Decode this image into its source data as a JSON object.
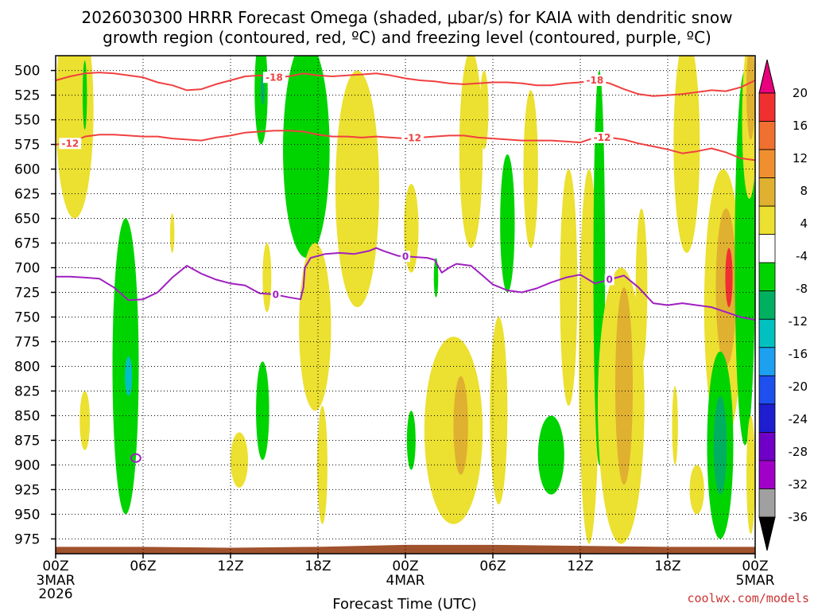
{
  "chart_data": {
    "type": "heatmap",
    "title_lines": [
      "2026030300 HRRR Forecast Omega (shaded, μbar/s) for KAIA with dendritic snow",
      "growth region (contoured, red, ºC) and freezing level (contoured, purple, ºC)"
    ],
    "xlabel": "Forecast Time (UTC)",
    "ylabel": "",
    "x_range_hours": [
      0,
      48
    ],
    "y_range_hpa": [
      990,
      485
    ],
    "y_ticks": [
      500,
      525,
      550,
      575,
      600,
      625,
      650,
      675,
      700,
      725,
      750,
      775,
      800,
      825,
      850,
      875,
      900,
      925,
      950,
      975
    ],
    "x_ticks": [
      {
        "hour": 0,
        "label": "00Z"
      },
      {
        "hour": 6,
        "label": "06Z"
      },
      {
        "hour": 12,
        "label": "12Z"
      },
      {
        "hour": 18,
        "label": "18Z"
      },
      {
        "hour": 24,
        "label": "00Z"
      },
      {
        "hour": 30,
        "label": "06Z"
      },
      {
        "hour": 36,
        "label": "12Z"
      },
      {
        "hour": 42,
        "label": "18Z"
      },
      {
        "hour": 48,
        "label": "00Z"
      }
    ],
    "date_labels": [
      {
        "hour": 0,
        "lines": [
          "3MAR",
          "2026"
        ]
      },
      {
        "hour": 24,
        "lines": [
          "4MAR"
        ]
      },
      {
        "hour": 48,
        "lines": [
          "5MAR"
        ]
      }
    ],
    "colorbar": {
      "labels": [
        "20",
        "16",
        "12",
        "8",
        "4",
        "-4",
        "-8",
        "-12",
        "-16",
        "-20",
        "-24",
        "-28",
        "-32",
        "-36"
      ],
      "bands": [
        "#e8007d",
        "#f03030",
        "#f07030",
        "#f08f30",
        "#e0b030",
        "#ece030",
        "#ffffff",
        "#00d400",
        "#00b060",
        "#00c0c0",
        "#1ea0f0",
        "#1e50f0",
        "#1e1ed0",
        "#7000c8",
        "#a000c8",
        "#a0a0a0"
      ],
      "end_colors": {
        "top": "#e8007d",
        "bottom": "#000000"
      }
    },
    "omega_regions": [
      {
        "cx": 1.3,
        "cy": 540,
        "rh": 1.3,
        "rp": 110,
        "level": "up4",
        "color": "#ece030"
      },
      {
        "cx": 2.0,
        "cy": 525,
        "rh": 0.15,
        "rp": 35,
        "level": "down8",
        "color": "#00d400"
      },
      {
        "cx": 4.8,
        "cy": 800,
        "rh": 0.9,
        "rp": 150,
        "level": "down8",
        "color": "#00d400"
      },
      {
        "cx": 5.0,
        "cy": 810,
        "rh": 0.25,
        "rp": 20,
        "level": "down12",
        "color": "#00c0c0"
      },
      {
        "cx": 2.0,
        "cy": 855,
        "rh": 0.35,
        "rp": 30,
        "level": "up4",
        "color": "#ece030"
      },
      {
        "cx": 8.0,
        "cy": 665,
        "rh": 0.15,
        "rp": 20,
        "level": "up4",
        "color": "#ece030"
      },
      {
        "cx": 12.6,
        "cy": 895,
        "rh": 0.6,
        "rp": 28,
        "level": "up4",
        "color": "#ece030"
      },
      {
        "cx": 14.1,
        "cy": 520,
        "rh": 0.45,
        "rp": 55,
        "level": "down8",
        "color": "#00d400"
      },
      {
        "cx": 14.2,
        "cy": 845,
        "rh": 0.45,
        "rp": 50,
        "level": "down8",
        "color": "#00d400"
      },
      {
        "cx": 14.2,
        "cy": 520,
        "rh": 0.15,
        "rp": 15,
        "level": "down12",
        "color": "#00b060"
      },
      {
        "cx": 14.5,
        "cy": 710,
        "rh": 0.3,
        "rp": 35,
        "level": "up4",
        "color": "#ece030"
      },
      {
        "cx": 17.2,
        "cy": 580,
        "rh": 1.6,
        "rp": 110,
        "level": "down8",
        "color": "#00d400"
      },
      {
        "cx": 17.8,
        "cy": 760,
        "rh": 1.1,
        "rp": 85,
        "level": "up4",
        "color": "#ece030"
      },
      {
        "cx": 18.3,
        "cy": 900,
        "rh": 0.35,
        "rp": 60,
        "level": "up4",
        "color": "#ece030"
      },
      {
        "cx": 20.7,
        "cy": 620,
        "rh": 1.5,
        "rp": 120,
        "level": "up4",
        "color": "#ece030"
      },
      {
        "cx": 24.4,
        "cy": 660,
        "rh": 0.5,
        "rp": 45,
        "level": "up4",
        "color": "#ece030"
      },
      {
        "cx": 24.4,
        "cy": 875,
        "rh": 0.3,
        "rp": 30,
        "level": "down8",
        "color": "#00d400"
      },
      {
        "cx": 26.1,
        "cy": 710,
        "rh": 0.15,
        "rp": 20,
        "level": "down8",
        "color": "#00d400"
      },
      {
        "cx": 27.3,
        "cy": 865,
        "rh": 2.0,
        "rp": 95,
        "level": "up4",
        "color": "#ece030"
      },
      {
        "cx": 27.8,
        "cy": 860,
        "rh": 0.5,
        "rp": 50,
        "level": "up8",
        "color": "#e0b030"
      },
      {
        "cx": 28.5,
        "cy": 580,
        "rh": 0.8,
        "rp": 100,
        "level": "up4",
        "color": "#ece030"
      },
      {
        "cx": 29.4,
        "cy": 540,
        "rh": 0.3,
        "rp": 40,
        "level": "up4",
        "color": "#ece030"
      },
      {
        "cx": 30.4,
        "cy": 845,
        "rh": 0.6,
        "rp": 95,
        "level": "up4",
        "color": "#ece030"
      },
      {
        "cx": 31.0,
        "cy": 655,
        "rh": 0.5,
        "rp": 70,
        "level": "down8",
        "color": "#00d400"
      },
      {
        "cx": 32.6,
        "cy": 600,
        "rh": 0.5,
        "rp": 80,
        "level": "up4",
        "color": "#ece030"
      },
      {
        "cx": 34.0,
        "cy": 890,
        "rh": 0.9,
        "rp": 40,
        "level": "down8",
        "color": "#00d400"
      },
      {
        "cx": 35.2,
        "cy": 720,
        "rh": 0.6,
        "rp": 120,
        "level": "up4",
        "color": "#ece030"
      },
      {
        "cx": 36.6,
        "cy": 790,
        "rh": 0.7,
        "rp": 190,
        "level": "up4",
        "color": "#ece030"
      },
      {
        "cx": 37.3,
        "cy": 700,
        "rh": 0.4,
        "rp": 200,
        "level": "down8",
        "color": "#00d400"
      },
      {
        "cx": 38.8,
        "cy": 840,
        "rh": 1.6,
        "rp": 140,
        "level": "up4",
        "color": "#ece030"
      },
      {
        "cx": 39.0,
        "cy": 820,
        "rh": 0.6,
        "rp": 100,
        "level": "up8",
        "color": "#e0b030"
      },
      {
        "cx": 40.2,
        "cy": 720,
        "rh": 0.4,
        "rp": 80,
        "level": "up4",
        "color": "#ece030"
      },
      {
        "cx": 42.5,
        "cy": 860,
        "rh": 0.2,
        "rp": 40,
        "level": "up4",
        "color": "#ece030"
      },
      {
        "cx": 43.3,
        "cy": 575,
        "rh": 0.9,
        "rp": 110,
        "level": "up4",
        "color": "#ece030"
      },
      {
        "cx": 44.0,
        "cy": 925,
        "rh": 0.5,
        "rp": 25,
        "level": "up4",
        "color": "#ece030"
      },
      {
        "cx": 45.8,
        "cy": 740,
        "rh": 1.3,
        "rp": 140,
        "level": "up4",
        "color": "#ece030"
      },
      {
        "cx": 46.0,
        "cy": 720,
        "rh": 0.7,
        "rp": 80,
        "level": "up8",
        "color": "#e0b030"
      },
      {
        "cx": 46.2,
        "cy": 710,
        "rh": 0.25,
        "rp": 30,
        "level": "up16",
        "color": "#f03030"
      },
      {
        "cx": 45.6,
        "cy": 880,
        "rh": 0.9,
        "rp": 95,
        "level": "down8",
        "color": "#00d400"
      },
      {
        "cx": 45.6,
        "cy": 880,
        "rh": 0.45,
        "rp": 50,
        "level": "down12",
        "color": "#00b060"
      },
      {
        "cx": 47.3,
        "cy": 690,
        "rh": 0.7,
        "rp": 190,
        "level": "down8",
        "color": "#00d400"
      },
      {
        "cx": 47.6,
        "cy": 550,
        "rh": 0.5,
        "rp": 80,
        "level": "up4",
        "color": "#ece030"
      },
      {
        "cx": 47.7,
        "cy": 520,
        "rh": 0.3,
        "rp": 50,
        "level": "up8",
        "color": "#e0b030"
      },
      {
        "cx": 47.7,
        "cy": 910,
        "rh": 0.3,
        "rp": 60,
        "level": "up4",
        "color": "#ece030"
      }
    ],
    "dendritic_contours": [
      {
        "name": "minus18",
        "color": "#f04040",
        "label": "-18",
        "label_hours": [
          15.0,
          37.0
        ],
        "points": [
          [
            0,
            510
          ],
          [
            1,
            506
          ],
          [
            2,
            503
          ],
          [
            3,
            502
          ],
          [
            4,
            503
          ],
          [
            5,
            505
          ],
          [
            6,
            507
          ],
          [
            7,
            512
          ],
          [
            8,
            515
          ],
          [
            9,
            520
          ],
          [
            10,
            519
          ],
          [
            11,
            514
          ],
          [
            12,
            510
          ],
          [
            13,
            506
          ],
          [
            14,
            505
          ],
          [
            15,
            507
          ],
          [
            16,
            506
          ],
          [
            17,
            503
          ],
          [
            18,
            505
          ],
          [
            19,
            506
          ],
          [
            20,
            505
          ],
          [
            21,
            504
          ],
          [
            22,
            503
          ],
          [
            23,
            505
          ],
          [
            24,
            508
          ],
          [
            25,
            510
          ],
          [
            26,
            511
          ],
          [
            27,
            513
          ],
          [
            28,
            514
          ],
          [
            29,
            513
          ],
          [
            30,
            512
          ],
          [
            31,
            512
          ],
          [
            32,
            513
          ],
          [
            33,
            515
          ],
          [
            34,
            515
          ],
          [
            35,
            513
          ],
          [
            36,
            512
          ],
          [
            37,
            510
          ],
          [
            38,
            513
          ],
          [
            39,
            519
          ],
          [
            40,
            524
          ],
          [
            41,
            526
          ],
          [
            42,
            525
          ],
          [
            43,
            524
          ],
          [
            44,
            522
          ],
          [
            45,
            520
          ],
          [
            46,
            521
          ],
          [
            47,
            517
          ],
          [
            48,
            510
          ]
        ]
      },
      {
        "name": "minus12",
        "color": "#f04040",
        "label": "-12",
        "label_hours": [
          1.0,
          24.5,
          37.5
        ],
        "points": [
          [
            0,
            575
          ],
          [
            1,
            574
          ],
          [
            2,
            567
          ],
          [
            3,
            565
          ],
          [
            4,
            565
          ],
          [
            5,
            566
          ],
          [
            6,
            567
          ],
          [
            7,
            567
          ],
          [
            8,
            569
          ],
          [
            9,
            570
          ],
          [
            10,
            571
          ],
          [
            11,
            568
          ],
          [
            12,
            566
          ],
          [
            13,
            563
          ],
          [
            14,
            562
          ],
          [
            15,
            561
          ],
          [
            16,
            561
          ],
          [
            17,
            562
          ],
          [
            18,
            565
          ],
          [
            19,
            567
          ],
          [
            20,
            567
          ],
          [
            21,
            568
          ],
          [
            22,
            567
          ],
          [
            23,
            568
          ],
          [
            24,
            569
          ],
          [
            25,
            568
          ],
          [
            26,
            567
          ],
          [
            27,
            566
          ],
          [
            28,
            566
          ],
          [
            29,
            568
          ],
          [
            30,
            569
          ],
          [
            31,
            570
          ],
          [
            32,
            571
          ],
          [
            33,
            571
          ],
          [
            34,
            571
          ],
          [
            35,
            572
          ],
          [
            36,
            573
          ],
          [
            37,
            568
          ],
          [
            38,
            568
          ],
          [
            39,
            570
          ],
          [
            40,
            574
          ],
          [
            41,
            577
          ],
          [
            42,
            580
          ],
          [
            43,
            584
          ],
          [
            44,
            582
          ],
          [
            45,
            579
          ],
          [
            46,
            583
          ],
          [
            47,
            589
          ],
          [
            48,
            591
          ]
        ]
      }
    ],
    "freezing_contour": {
      "name": "zero",
      "color": "#a020c0",
      "label": "0",
      "label_hours": [
        15.1,
        24.0,
        38.0
      ],
      "points": [
        [
          0,
          709
        ],
        [
          1,
          709
        ],
        [
          2,
          710
        ],
        [
          3,
          711
        ],
        [
          4,
          720
        ],
        [
          5,
          733
        ],
        [
          6,
          732
        ],
        [
          7,
          725
        ],
        [
          8,
          710
        ],
        [
          9,
          698
        ],
        [
          10,
          706
        ],
        [
          11,
          712
        ],
        [
          12,
          716
        ],
        [
          13,
          718
        ],
        [
          14,
          726
        ],
        [
          15,
          727
        ],
        [
          16,
          730
        ],
        [
          16.8,
          732
        ],
        [
          17.0,
          720
        ],
        [
          17.1,
          700
        ],
        [
          17.5,
          690
        ],
        [
          18.5,
          686
        ],
        [
          19.5,
          685
        ],
        [
          20.5,
          686
        ],
        [
          21.5,
          683
        ],
        [
          22.0,
          680
        ],
        [
          22.5,
          683
        ],
        [
          23.5,
          688
        ],
        [
          24.5,
          689
        ],
        [
          25.5,
          690
        ],
        [
          26.0,
          692
        ],
        [
          26.5,
          705
        ],
        [
          27.0,
          700
        ],
        [
          27.5,
          696
        ],
        [
          28.5,
          698
        ],
        [
          29.3,
          708
        ],
        [
          30.0,
          717
        ],
        [
          31.0,
          723
        ],
        [
          32.0,
          725
        ],
        [
          33.0,
          721
        ],
        [
          34.0,
          715
        ],
        [
          35.0,
          710
        ],
        [
          36.0,
          707
        ],
        [
          37.0,
          716
        ],
        [
          38.0,
          712
        ],
        [
          39.0,
          708
        ],
        [
          40.0,
          720
        ],
        [
          41.0,
          736
        ],
        [
          42.0,
          738
        ],
        [
          43.0,
          736
        ],
        [
          44.0,
          738
        ],
        [
          45.0,
          740
        ],
        [
          46.0,
          745
        ],
        [
          47.0,
          750
        ],
        [
          48.0,
          753
        ]
      ]
    },
    "freezing_loop_center": {
      "hour": 5.5,
      "hpa": 893
    },
    "terrain": {
      "color": "#a0522d",
      "top_hpa": [
        983,
        983,
        984,
        983,
        981,
        981,
        982,
        983,
        983
      ]
    }
  },
  "credit": "coolwx.com/models"
}
